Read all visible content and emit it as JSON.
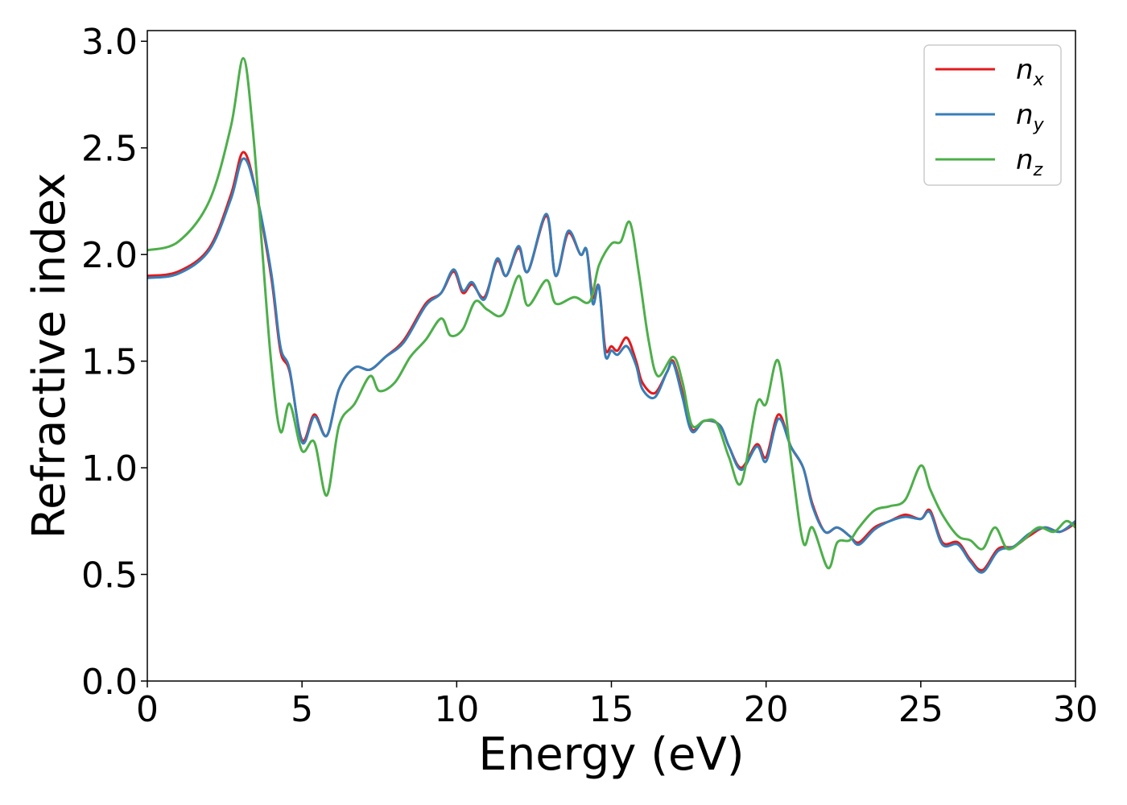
{
  "chart_data": {
    "type": "line",
    "xlabel": "Energy (eV)",
    "ylabel": "Refractive index",
    "xlim": [
      0,
      30
    ],
    "ylim": [
      0,
      3.05
    ],
    "xticks": [
      0,
      5,
      10,
      15,
      20,
      25,
      30
    ],
    "xtick_labels": [
      "0",
      "5",
      "10",
      "15",
      "20",
      "25",
      "30"
    ],
    "yticks": [
      0.0,
      0.5,
      1.0,
      1.5,
      2.0,
      2.5,
      3.0
    ],
    "ytick_labels": [
      "0.0",
      "0.5",
      "1.0",
      "1.5",
      "2.0",
      "2.5",
      "3.0"
    ],
    "grid": false,
    "legend_position": "top-right",
    "series": [
      {
        "name": "n_x",
        "legend_base": "n",
        "legend_sub": "x",
        "color": "#e41a1c",
        "points": [
          [
            0,
            1.9
          ],
          [
            1,
            1.92
          ],
          [
            2,
            2.03
          ],
          [
            2.7,
            2.28
          ],
          [
            3.1,
            2.48
          ],
          [
            3.5,
            2.3
          ],
          [
            4,
            1.9
          ],
          [
            4.3,
            1.55
          ],
          [
            4.6,
            1.45
          ],
          [
            5,
            1.13
          ],
          [
            5.4,
            1.25
          ],
          [
            5.8,
            1.15
          ],
          [
            6.2,
            1.37
          ],
          [
            6.7,
            1.47
          ],
          [
            7.2,
            1.46
          ],
          [
            7.7,
            1.52
          ],
          [
            8.3,
            1.6
          ],
          [
            9,
            1.77
          ],
          [
            9.5,
            1.82
          ],
          [
            9.9,
            1.92
          ],
          [
            10.2,
            1.82
          ],
          [
            10.5,
            1.86
          ],
          [
            10.9,
            1.8
          ],
          [
            11.3,
            1.97
          ],
          [
            11.6,
            1.9
          ],
          [
            12,
            2.03
          ],
          [
            12.3,
            1.92
          ],
          [
            12.9,
            2.18
          ],
          [
            13.2,
            1.9
          ],
          [
            13.6,
            2.1
          ],
          [
            14,
            2.0
          ],
          [
            14.2,
            2.02
          ],
          [
            14.4,
            1.8
          ],
          [
            14.6,
            1.85
          ],
          [
            14.8,
            1.56
          ],
          [
            15,
            1.57
          ],
          [
            15.2,
            1.55
          ],
          [
            15.5,
            1.61
          ],
          [
            15.8,
            1.5
          ],
          [
            16,
            1.4
          ],
          [
            16.4,
            1.35
          ],
          [
            16.8,
            1.45
          ],
          [
            17,
            1.5
          ],
          [
            17.3,
            1.35
          ],
          [
            17.6,
            1.18
          ],
          [
            18,
            1.22
          ],
          [
            18.5,
            1.2
          ],
          [
            18.8,
            1.1
          ],
          [
            19.2,
            1.0
          ],
          [
            19.7,
            1.11
          ],
          [
            20,
            1.05
          ],
          [
            20.4,
            1.25
          ],
          [
            20.8,
            1.1
          ],
          [
            21.2,
            1.0
          ],
          [
            21.5,
            0.83
          ],
          [
            21.9,
            0.7
          ],
          [
            22.3,
            0.72
          ],
          [
            22.7,
            0.68
          ],
          [
            23,
            0.65
          ],
          [
            23.5,
            0.72
          ],
          [
            24,
            0.75
          ],
          [
            24.5,
            0.78
          ],
          [
            25,
            0.76
          ],
          [
            25.3,
            0.8
          ],
          [
            25.7,
            0.65
          ],
          [
            26.2,
            0.65
          ],
          [
            26.6,
            0.57
          ],
          [
            27,
            0.52
          ],
          [
            27.5,
            0.62
          ],
          [
            28,
            0.63
          ],
          [
            28.5,
            0.68
          ],
          [
            29,
            0.72
          ],
          [
            29.5,
            0.7
          ],
          [
            30,
            0.74
          ]
        ]
      },
      {
        "name": "n_y",
        "legend_base": "n",
        "legend_sub": "y",
        "color": "#377eb8",
        "points": [
          [
            0,
            1.89
          ],
          [
            1,
            1.91
          ],
          [
            2,
            2.02
          ],
          [
            2.7,
            2.26
          ],
          [
            3.1,
            2.45
          ],
          [
            3.5,
            2.3
          ],
          [
            4,
            1.92
          ],
          [
            4.3,
            1.57
          ],
          [
            4.6,
            1.46
          ],
          [
            5,
            1.12
          ],
          [
            5.4,
            1.24
          ],
          [
            5.8,
            1.15
          ],
          [
            6.2,
            1.37
          ],
          [
            6.7,
            1.47
          ],
          [
            7.2,
            1.46
          ],
          [
            7.7,
            1.52
          ],
          [
            8.3,
            1.59
          ],
          [
            9,
            1.76
          ],
          [
            9.5,
            1.82
          ],
          [
            9.9,
            1.93
          ],
          [
            10.2,
            1.83
          ],
          [
            10.5,
            1.87
          ],
          [
            10.9,
            1.79
          ],
          [
            11.3,
            1.98
          ],
          [
            11.6,
            1.9
          ],
          [
            12,
            2.04
          ],
          [
            12.3,
            1.92
          ],
          [
            12.9,
            2.19
          ],
          [
            13.2,
            1.9
          ],
          [
            13.6,
            2.11
          ],
          [
            14,
            2.0
          ],
          [
            14.2,
            2.02
          ],
          [
            14.4,
            1.77
          ],
          [
            14.6,
            1.85
          ],
          [
            14.8,
            1.53
          ],
          [
            15,
            1.55
          ],
          [
            15.2,
            1.53
          ],
          [
            15.5,
            1.57
          ],
          [
            15.8,
            1.48
          ],
          [
            16,
            1.37
          ],
          [
            16.4,
            1.33
          ],
          [
            16.8,
            1.45
          ],
          [
            17,
            1.49
          ],
          [
            17.3,
            1.33
          ],
          [
            17.6,
            1.17
          ],
          [
            18,
            1.22
          ],
          [
            18.5,
            1.2
          ],
          [
            18.8,
            1.1
          ],
          [
            19.2,
            0.99
          ],
          [
            19.7,
            1.1
          ],
          [
            20,
            1.03
          ],
          [
            20.4,
            1.23
          ],
          [
            20.8,
            1.1
          ],
          [
            21.2,
            1.0
          ],
          [
            21.5,
            0.82
          ],
          [
            21.9,
            0.7
          ],
          [
            22.3,
            0.72
          ],
          [
            22.7,
            0.68
          ],
          [
            23,
            0.64
          ],
          [
            23.5,
            0.71
          ],
          [
            24,
            0.75
          ],
          [
            24.5,
            0.77
          ],
          [
            25,
            0.76
          ],
          [
            25.3,
            0.79
          ],
          [
            25.7,
            0.64
          ],
          [
            26.2,
            0.64
          ],
          [
            26.6,
            0.56
          ],
          [
            27,
            0.51
          ],
          [
            27.5,
            0.61
          ],
          [
            28,
            0.63
          ],
          [
            28.5,
            0.69
          ],
          [
            29,
            0.72
          ],
          [
            29.5,
            0.7
          ],
          [
            30,
            0.75
          ]
        ]
      },
      {
        "name": "n_z",
        "legend_base": "n",
        "legend_sub": "z",
        "color": "#4daf4a",
        "points": [
          [
            0,
            2.02
          ],
          [
            1,
            2.06
          ],
          [
            2,
            2.25
          ],
          [
            2.7,
            2.6
          ],
          [
            3.1,
            2.92
          ],
          [
            3.4,
            2.6
          ],
          [
            3.7,
            2.05
          ],
          [
            4,
            1.5
          ],
          [
            4.3,
            1.17
          ],
          [
            4.6,
            1.3
          ],
          [
            5,
            1.08
          ],
          [
            5.4,
            1.12
          ],
          [
            5.8,
            0.87
          ],
          [
            6.2,
            1.2
          ],
          [
            6.7,
            1.3
          ],
          [
            7.2,
            1.43
          ],
          [
            7.5,
            1.36
          ],
          [
            8,
            1.4
          ],
          [
            8.5,
            1.52
          ],
          [
            9,
            1.6
          ],
          [
            9.5,
            1.7
          ],
          [
            9.8,
            1.62
          ],
          [
            10.2,
            1.65
          ],
          [
            10.6,
            1.78
          ],
          [
            11,
            1.74
          ],
          [
            11.5,
            1.72
          ],
          [
            12,
            1.9
          ],
          [
            12.3,
            1.76
          ],
          [
            12.9,
            1.88
          ],
          [
            13.2,
            1.77
          ],
          [
            13.8,
            1.8
          ],
          [
            14.3,
            1.78
          ],
          [
            14.6,
            1.95
          ],
          [
            15,
            2.05
          ],
          [
            15.3,
            2.06
          ],
          [
            15.6,
            2.15
          ],
          [
            15.9,
            1.9
          ],
          [
            16.2,
            1.6
          ],
          [
            16.5,
            1.43
          ],
          [
            17,
            1.52
          ],
          [
            17.3,
            1.4
          ],
          [
            17.6,
            1.2
          ],
          [
            18,
            1.22
          ],
          [
            18.4,
            1.21
          ],
          [
            18.8,
            1.05
          ],
          [
            19.2,
            0.93
          ],
          [
            19.7,
            1.3
          ],
          [
            20,
            1.3
          ],
          [
            20.4,
            1.5
          ],
          [
            20.8,
            1.05
          ],
          [
            21.2,
            0.65
          ],
          [
            21.5,
            0.72
          ],
          [
            22,
            0.53
          ],
          [
            22.3,
            0.65
          ],
          [
            22.7,
            0.66
          ],
          [
            23,
            0.72
          ],
          [
            23.5,
            0.8
          ],
          [
            24,
            0.82
          ],
          [
            24.5,
            0.85
          ],
          [
            25,
            1.01
          ],
          [
            25.3,
            0.9
          ],
          [
            25.7,
            0.78
          ],
          [
            26.2,
            0.68
          ],
          [
            26.6,
            0.66
          ],
          [
            27,
            0.62
          ],
          [
            27.4,
            0.72
          ],
          [
            27.8,
            0.62
          ],
          [
            28.3,
            0.66
          ],
          [
            28.8,
            0.72
          ],
          [
            29.3,
            0.7
          ],
          [
            29.7,
            0.75
          ],
          [
            30,
            0.72
          ]
        ]
      }
    ]
  }
}
